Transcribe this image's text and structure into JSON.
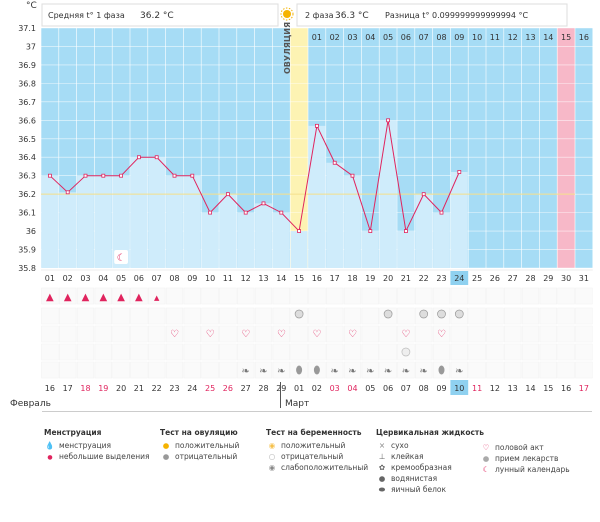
{
  "header": {
    "phase1_label": "Средняя t° 1 фаза",
    "phase1_value": "36.2 °C",
    "phase2_label": "2 фаза",
    "phase2_value": "36.3 °C",
    "diff_label": "Разница t°",
    "diff_value": "0.099999999999994 °C",
    "ovulation_label": "ОВУЛЯЦИЯ"
  },
  "months": {
    "first": "Февраль",
    "second": "Март"
  },
  "chart_data": {
    "type": "line",
    "ylabel": "°C",
    "ylim": [
      35.8,
      37.1
    ],
    "yticks": [
      "35.8",
      "35.9",
      "36",
      "36.1",
      "36.2",
      "36.3",
      "36.4",
      "36.5",
      "36.6",
      "36.7",
      "36.8",
      "36.9",
      "37",
      "37.1"
    ],
    "cycle_days": [
      "01",
      "02",
      "03",
      "04",
      "05",
      "06",
      "07",
      "08",
      "09",
      "10",
      "11",
      "12",
      "13",
      "14",
      "15",
      "01",
      "02",
      "03",
      "04",
      "05",
      "06",
      "07",
      "08",
      "09",
      "10",
      "11",
      "12",
      "13",
      "14",
      "15",
      "16"
    ],
    "display_days": [
      "01",
      "02",
      "03",
      "04",
      "05",
      "06",
      "07",
      "08",
      "09",
      "10",
      "11",
      "12",
      "13",
      "14",
      "15",
      "16",
      "17",
      "18",
      "19",
      "20",
      "21",
      "22",
      "23",
      "24",
      "25",
      "26",
      "27",
      "28",
      "29",
      "30",
      "31"
    ],
    "highlighted_display_day": "24",
    "dates": [
      "16",
      "17",
      "18",
      "19",
      "20",
      "21",
      "22",
      "23",
      "24",
      "25",
      "26",
      "27",
      "28",
      "29",
      "01",
      "02",
      "03",
      "04",
      "05",
      "06",
      "07",
      "08",
      "09",
      "10",
      "11",
      "12",
      "13",
      "14",
      "15",
      "16",
      "17"
    ],
    "date_colors": [
      "n",
      "n",
      "r",
      "r",
      "n",
      "n",
      "n",
      "n",
      "n",
      "r",
      "r",
      "n",
      "n",
      "n",
      "n",
      "n",
      "r",
      "r",
      "n",
      "n",
      "n",
      "n",
      "n",
      "h",
      "r",
      "n",
      "n",
      "n",
      "n",
      "n",
      "r"
    ],
    "temperatures": [
      36.3,
      36.21,
      36.3,
      36.3,
      36.3,
      36.4,
      36.4,
      36.3,
      36.3,
      36.1,
      36.2,
      36.1,
      36.15,
      36.1,
      36.0,
      36.57,
      36.37,
      36.3,
      36.0,
      36.6,
      36.0,
      36.2,
      36.1,
      36.32,
      null,
      null,
      null,
      null,
      null,
      null,
      null
    ],
    "coverline": 36.2,
    "ovulation_day_index": 14,
    "predicted_period_index": 29,
    "phase2_start_index": 15,
    "phase2_end_index": 28
  },
  "symptoms": {
    "menstruation": [
      "heavy",
      "heavy",
      "heavy",
      "heavy",
      "heavy",
      "heavy",
      "light",
      null,
      null,
      null,
      null,
      null,
      null,
      null,
      null,
      null,
      null,
      null,
      null,
      null,
      null,
      null,
      null,
      null,
      null,
      null,
      null,
      null,
      null,
      null,
      null
    ],
    "ovulation_test": [
      null,
      null,
      null,
      null,
      null,
      null,
      null,
      null,
      null,
      null,
      null,
      null,
      null,
      null,
      "neg",
      null,
      null,
      null,
      null,
      "neg",
      null,
      "neg",
      "neg",
      "neg",
      null,
      null,
      null,
      null,
      null,
      null,
      null
    ],
    "intercourse": [
      null,
      null,
      null,
      null,
      null,
      null,
      null,
      "y",
      null,
      "y",
      null,
      "y",
      null,
      "y",
      null,
      "y",
      null,
      "y",
      null,
      null,
      "y",
      null,
      "y",
      null,
      null,
      null,
      null,
      null,
      null,
      null,
      null
    ],
    "medicine": [
      null,
      null,
      null,
      null,
      null,
      null,
      null,
      null,
      null,
      null,
      null,
      null,
      null,
      null,
      null,
      null,
      null,
      null,
      null,
      null,
      "y",
      null,
      null,
      null,
      null,
      null,
      null,
      null,
      null,
      null,
      null
    ],
    "mucus": [
      null,
      null,
      null,
      null,
      null,
      null,
      null,
      null,
      null,
      null,
      null,
      "cream",
      "cream",
      "cream",
      "egg",
      "egg",
      "cream",
      "cream",
      "cream",
      "cream",
      "cream",
      "cream",
      "egg",
      "cream",
      null,
      null,
      null,
      null,
      null,
      null,
      null
    ],
    "lunar_day_index": 4
  },
  "legend": {
    "menstruation": {
      "title": "Менструация",
      "items": [
        "менструация",
        "небольшие выделения"
      ]
    },
    "ovulation_test": {
      "title": "Тест на овуляцию",
      "items": [
        "положительный",
        "отрицательный"
      ]
    },
    "pregnancy_test": {
      "title": "Тест на беременность",
      "items": [
        "положительный",
        "отрицательный",
        "слабоположительный"
      ]
    },
    "cervical": {
      "title": "Цервикальная жидкость",
      "items": [
        "сухо",
        "клейкая",
        "кремообразная",
        "водянистая",
        "яичный белок"
      ]
    },
    "other": {
      "items": [
        "половой акт",
        "прием лекарств",
        "лунный календарь"
      ]
    }
  },
  "colors": {
    "blue": "#a6dcf5",
    "light_blue": "#cfecfb",
    "ovulation": "#fdf3b3",
    "predicted": "#f7b8c8",
    "line": "#e0245e",
    "accent": "#e0245e"
  }
}
